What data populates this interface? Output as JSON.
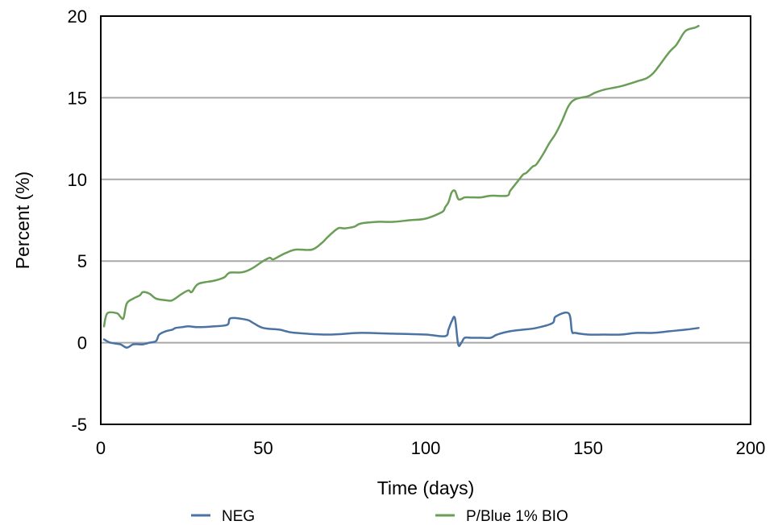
{
  "chart_data": {
    "type": "line",
    "xlabel": "Time (days)",
    "ylabel": "Percent (%)",
    "xlim": [
      0,
      200
    ],
    "ylim": [
      -5,
      20
    ],
    "x_ticks": [
      0,
      50,
      100,
      150,
      200
    ],
    "x_tick_labels": [
      "0",
      "50",
      "100",
      "150",
      "200"
    ],
    "y_ticks": [
      -5,
      0,
      5,
      10,
      15,
      20
    ],
    "y_tick_labels": [
      "-5",
      "0",
      "5",
      "10",
      "15",
      "20"
    ],
    "grid": "horizontal",
    "legend_position": "bottom",
    "series": [
      {
        "name": "NEG",
        "color": "#4a73a3",
        "x": [
          1,
          3,
          6,
          8,
          10,
          12,
          13,
          15,
          17,
          18,
          20,
          22,
          23,
          25,
          27,
          30,
          35,
          39,
          40,
          45,
          47,
          50,
          55,
          57,
          60,
          70,
          80,
          90,
          100,
          106,
          107,
          108,
          109,
          110,
          111,
          112,
          114,
          117,
          120,
          122,
          126,
          130,
          134,
          139,
          140,
          144,
          145,
          146,
          150,
          155,
          160,
          165,
          170,
          175,
          180,
          184
        ],
        "y": [
          0.2,
          0.0,
          -0.1,
          -0.3,
          -0.1,
          -0.1,
          -0.1,
          0.0,
          0.1,
          0.5,
          0.7,
          0.8,
          0.9,
          0.95,
          1.0,
          0.95,
          1.0,
          1.1,
          1.5,
          1.4,
          1.2,
          0.9,
          0.8,
          0.7,
          0.6,
          0.5,
          0.6,
          0.55,
          0.5,
          0.4,
          0.8,
          1.3,
          1.5,
          -0.1,
          0.0,
          0.3,
          0.3,
          0.3,
          0.3,
          0.5,
          0.7,
          0.8,
          0.9,
          1.2,
          1.6,
          1.8,
          0.7,
          0.6,
          0.5,
          0.5,
          0.5,
          0.6,
          0.6,
          0.7,
          0.8,
          0.9
        ]
      },
      {
        "name": "P/Blue 1% BIO",
        "color": "#6a9e57",
        "x": [
          1,
          2,
          5,
          6,
          7,
          8,
          10,
          12,
          13,
          15,
          17,
          20,
          22,
          25,
          27,
          28,
          30,
          35,
          38,
          39,
          40,
          43,
          45,
          47,
          50,
          52,
          53,
          55,
          57,
          60,
          65,
          68,
          70,
          73,
          75,
          78,
          80,
          85,
          90,
          95,
          100,
          105,
          106,
          107,
          108,
          109,
          110,
          111,
          112,
          114,
          117,
          120,
          125,
          126,
          128,
          130,
          131,
          133,
          134,
          136,
          138,
          140,
          142,
          144,
          146,
          150,
          152,
          155,
          160,
          165,
          168,
          170,
          172,
          175,
          177,
          178,
          180,
          183,
          184
        ],
        "y": [
          1.0,
          1.8,
          1.8,
          1.6,
          1.5,
          2.4,
          2.7,
          2.9,
          3.1,
          3.0,
          2.7,
          2.6,
          2.6,
          3.0,
          3.2,
          3.1,
          3.6,
          3.8,
          4.0,
          4.2,
          4.3,
          4.3,
          4.4,
          4.6,
          5.0,
          5.2,
          5.1,
          5.3,
          5.5,
          5.7,
          5.7,
          6.1,
          6.5,
          7.0,
          7.0,
          7.1,
          7.3,
          7.4,
          7.4,
          7.5,
          7.6,
          8.0,
          8.3,
          8.6,
          9.2,
          9.3,
          8.8,
          8.8,
          8.9,
          8.9,
          8.9,
          9.0,
          9.0,
          9.3,
          9.8,
          10.3,
          10.4,
          10.8,
          10.9,
          11.5,
          12.2,
          12.8,
          13.6,
          14.5,
          14.9,
          15.1,
          15.3,
          15.5,
          15.7,
          16.0,
          16.2,
          16.5,
          17.0,
          17.8,
          18.2,
          18.5,
          19.1,
          19.3,
          19.4
        ]
      }
    ]
  }
}
